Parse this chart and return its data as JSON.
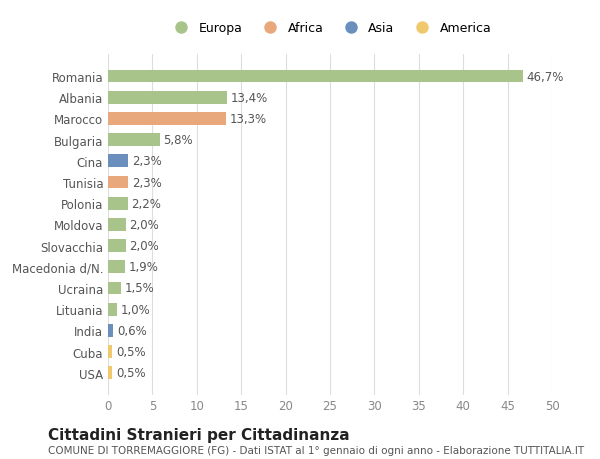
{
  "countries": [
    "Romania",
    "Albania",
    "Marocco",
    "Bulgaria",
    "Cina",
    "Tunisia",
    "Polonia",
    "Moldova",
    "Slovacchia",
    "Macedonia d/N.",
    "Ucraina",
    "Lituania",
    "India",
    "Cuba",
    "USA"
  ],
  "values": [
    46.7,
    13.4,
    13.3,
    5.8,
    2.3,
    2.3,
    2.2,
    2.0,
    2.0,
    1.9,
    1.5,
    1.0,
    0.6,
    0.5,
    0.5
  ],
  "labels": [
    "46,7%",
    "13,4%",
    "13,3%",
    "5,8%",
    "2,3%",
    "2,3%",
    "2,2%",
    "2,0%",
    "2,0%",
    "1,9%",
    "1,5%",
    "1,0%",
    "0,6%",
    "0,5%",
    "0,5%"
  ],
  "continents": [
    "Europa",
    "Europa",
    "Africa",
    "Europa",
    "Asia",
    "Africa",
    "Europa",
    "Europa",
    "Europa",
    "Europa",
    "Europa",
    "Europa",
    "Asia",
    "America",
    "America"
  ],
  "colors": {
    "Europa": "#a8c48a",
    "Africa": "#e8a87c",
    "Asia": "#6b8fbd",
    "America": "#f0c96e"
  },
  "legend_order": [
    "Europa",
    "Africa",
    "Asia",
    "America"
  ],
  "title": "Cittadini Stranieri per Cittadinanza",
  "subtitle": "COMUNE DI TORREMAGGIORE (FG) - Dati ISTAT al 1° gennaio di ogni anno - Elaborazione TUTTITALIA.IT",
  "xlim": [
    0,
    50
  ],
  "xticks": [
    0,
    5,
    10,
    15,
    20,
    25,
    30,
    35,
    40,
    45,
    50
  ],
  "bg_color": "#ffffff",
  "grid_color": "#dddddd",
  "bar_height": 0.6,
  "label_fontsize": 8.5,
  "tick_label_fontsize": 8.5,
  "title_fontsize": 11,
  "subtitle_fontsize": 7.5
}
